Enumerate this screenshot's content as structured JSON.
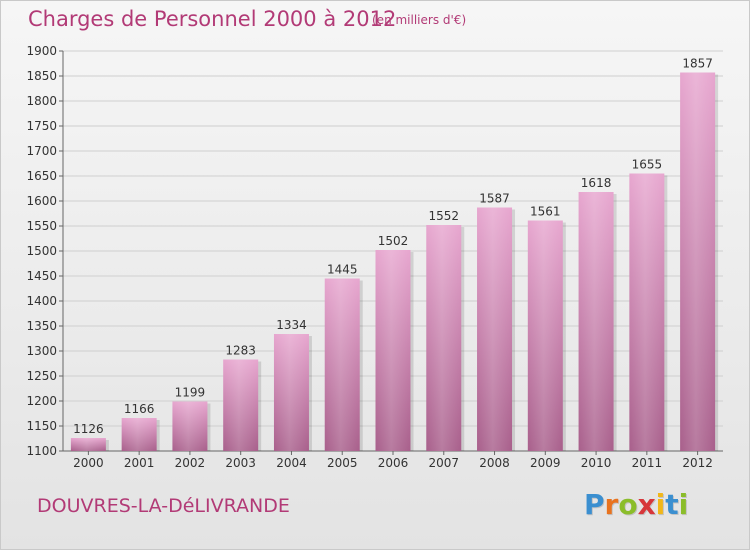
{
  "header": {
    "title": "Charges de Personnel 2000 à 2012",
    "subtitle": "(en milliers d'€)"
  },
  "footer": {
    "place": "DOUVRES-LA-DéLIVRANDE",
    "logo_letters": [
      "P",
      "r",
      "o",
      "x",
      "i",
      "t",
      "i"
    ],
    "logo_colors": [
      "#3b8fd0",
      "#e8731f",
      "#8bbd2a",
      "#d7363a",
      "#f1b719",
      "#3b8fd0",
      "#8bbd2a"
    ]
  },
  "colors": {
    "bar_top": "#e7a6cf",
    "bar_bottom": "#a85f8b",
    "accent": "#b23a76"
  },
  "chart_data": {
    "type": "bar",
    "title": "Charges de Personnel 2000 à 2012",
    "subtitle": "(en milliers d'€)",
    "categories": [
      "2000",
      "2001",
      "2002",
      "2003",
      "2004",
      "2005",
      "2006",
      "2007",
      "2008",
      "2009",
      "2010",
      "2011",
      "2012"
    ],
    "values": [
      1126,
      1166,
      1199,
      1283,
      1334,
      1445,
      1502,
      1552,
      1587,
      1561,
      1618,
      1655,
      1857
    ],
    "ylim": [
      1100,
      1900
    ],
    "yticks": [
      1100,
      1150,
      1200,
      1250,
      1300,
      1350,
      1400,
      1450,
      1500,
      1550,
      1600,
      1650,
      1700,
      1750,
      1800,
      1850,
      1900
    ],
    "grid": true,
    "xlabel": "",
    "ylabel": ""
  }
}
